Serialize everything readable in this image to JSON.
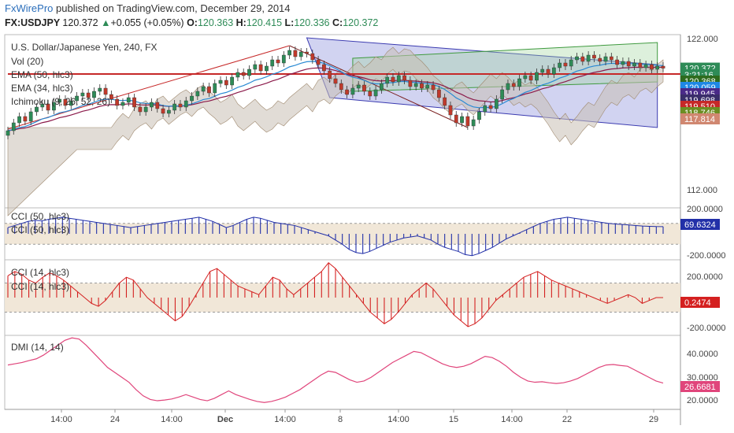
{
  "header": {
    "brand": "FxWirePro",
    "published": " published on TradingView.com, December 29, 2014",
    "symbol": "FX:USDJPY",
    "last": "120.372",
    "change": "+0.055 (+0.05%)",
    "o_label": "O:",
    "o": "120.363",
    "h_label": "H:",
    "h": "120.415",
    "l_label": "L:",
    "l": "120.336",
    "c_label": "C:",
    "c": "120.372"
  },
  "colors": {
    "up": "#2e8b57",
    "down": "#c0392b",
    "cci50": "#2230a8",
    "cci14": "#d42020",
    "dmi": "#e0457b",
    "ema50": "#8b1a4a",
    "ema34": "#2a8ad4",
    "cloud": "#c8bfb4",
    "channel_blue": "#7b80d8",
    "channel_green": "#9fd49a",
    "redline": "#c62828"
  },
  "chart_data": [
    {
      "type": "candlestick",
      "title": "U.S. Dollar/Japanese Yen, 240, FX",
      "indicators": [
        "Vol (20)",
        "EMA (50, hlc3)",
        "EMA (34, hlc3)",
        "Ichimoku (9, 26, 52, 26)"
      ],
      "y_ticks": [
        "122.000",
        "112.000"
      ],
      "ylim": [
        111.5,
        122.5
      ],
      "x_ticks": [
        "14:00",
        "24",
        "14:00",
        "Dec",
        "14:00",
        "8",
        "14:00",
        "15",
        "14:00",
        "22",
        "29"
      ],
      "price_tags": [
        {
          "label": "120.372",
          "value": 120.372,
          "color": "#2e8b57"
        },
        {
          "label": "3:21:16",
          "value": 119.95,
          "color": "#2e8b57"
        },
        {
          "label": "120.368",
          "value": 119.55,
          "color": "#2e6b1e"
        },
        {
          "label": "120.059",
          "value": 119.15,
          "color": "#1e88e5"
        },
        {
          "label": "119.945",
          "value": 118.75,
          "color": "#4a2a88"
        },
        {
          "label": "119.698",
          "value": 118.35,
          "color": "#3a2e6a"
        },
        {
          "label": "119.510",
          "value": 117.95,
          "color": "#c62828"
        },
        {
          "label": "118.746",
          "value": 117.55,
          "color": "#6b8e23"
        },
        {
          "label": "117.814",
          "value": 117.15,
          "color": "#d08770"
        }
      ],
      "horizontal_line": 120.0,
      "closes": [
        116.4,
        116.9,
        117.3,
        117.0,
        117.6,
        117.9,
        118.1,
        117.7,
        118.2,
        118.4,
        118.0,
        118.3,
        118.6,
        118.8,
        118.5,
        118.9,
        119.1,
        118.7,
        118.4,
        118.0,
        118.2,
        118.5,
        117.9,
        117.6,
        117.9,
        118.2,
        117.8,
        117.5,
        117.7,
        118.1,
        117.9,
        118.3,
        118.6,
        118.9,
        119.2,
        118.8,
        119.4,
        119.6,
        119.3,
        119.8,
        120.1,
        119.9,
        120.3,
        120.6,
        120.2,
        120.5,
        120.9,
        120.7,
        121.2,
        121.5,
        121.1,
        121.4,
        121.3,
        120.9,
        120.6,
        120.2,
        119.7,
        119.4,
        119.0,
        118.7,
        119.1,
        119.3,
        118.9,
        118.6,
        119.0,
        119.4,
        119.8,
        119.5,
        119.9,
        119.6,
        119.2,
        119.4,
        119.1,
        119.3,
        119.0,
        118.5,
        118.0,
        117.4,
        116.9,
        117.3,
        116.7,
        117.1,
        117.6,
        118.0,
        117.8,
        118.4,
        119.0,
        119.4,
        119.2,
        119.7,
        119.9,
        119.6,
        120.1,
        120.3,
        120.0,
        120.4,
        120.7,
        120.5,
        120.9,
        121.1,
        120.8,
        121.2,
        121.0,
        120.8,
        121.1,
        120.9,
        120.6,
        120.8,
        120.5,
        120.7,
        120.4,
        120.6,
        120.3,
        120.5,
        120.37
      ]
    },
    {
      "type": "bar",
      "title": "CCI (50, hlc3)",
      "title2": "CCI (50, hlc3)",
      "y_ticks": [
        "200.0000",
        "-200.0000"
      ],
      "ylim": [
        -250,
        250
      ],
      "band": [
        -100,
        100
      ],
      "last_label": "69.6324",
      "values": [
        60,
        80,
        100,
        120,
        130,
        125,
        140,
        150,
        160,
        150,
        140,
        130,
        120,
        110,
        100,
        90,
        80,
        70,
        60,
        70,
        80,
        90,
        100,
        110,
        120,
        130,
        140,
        150,
        160,
        140,
        120,
        90,
        60,
        80,
        110,
        140,
        160,
        150,
        130,
        110,
        100,
        90,
        80,
        60,
        40,
        20,
        0,
        -20,
        -60,
        -100,
        -150,
        -180,
        -190,
        -170,
        -140,
        -110,
        -80,
        -60,
        -40,
        -30,
        -20,
        -40,
        -60,
        -100,
        -130,
        -150,
        -170,
        -200,
        -210,
        -190,
        -160,
        -130,
        -90,
        -50,
        -20,
        10,
        40,
        70,
        100,
        120,
        140,
        150,
        160,
        150,
        140,
        130,
        120,
        110,
        100,
        95,
        90,
        85,
        80,
        75,
        72,
        70,
        69.6
      ]
    },
    {
      "type": "bar",
      "title": "CCI (14, hlc3)",
      "title2": "CCI (14, hlc3)",
      "y_ticks": [
        "200.0000",
        "-200.0000"
      ],
      "ylim": [
        -260,
        260
      ],
      "band": [
        -100,
        100
      ],
      "last_label": "0.2474",
      "values": [
        150,
        180,
        160,
        120,
        100,
        140,
        170,
        150,
        120,
        80,
        40,
        0,
        -40,
        -60,
        -20,
        40,
        100,
        140,
        120,
        60,
        0,
        -40,
        -80,
        -120,
        -160,
        -130,
        -60,
        20,
        100,
        180,
        200,
        160,
        120,
        80,
        60,
        40,
        20,
        80,
        140,
        120,
        60,
        20,
        60,
        100,
        140,
        180,
        240,
        200,
        140,
        80,
        20,
        -40,
        -100,
        -140,
        -180,
        -150,
        -100,
        -40,
        20,
        60,
        100,
        60,
        0,
        -60,
        -120,
        -160,
        -200,
        -180,
        -140,
        -80,
        -20,
        20,
        60,
        100,
        140,
        160,
        180,
        150,
        120,
        100,
        80,
        60,
        40,
        20,
        0,
        -20,
        -40,
        -20,
        0,
        20,
        0,
        -40,
        -20,
        0,
        0.25
      ]
    },
    {
      "type": "line",
      "title": "DMI (14, 14)",
      "y_ticks": [
        "40.0000",
        "30.0000",
        "20.0000"
      ],
      "ylim": [
        16,
        46
      ],
      "last_label": "26.6681",
      "values": [
        34,
        34.5,
        35,
        35.8,
        36.5,
        38,
        40,
        42,
        44,
        45,
        44.5,
        42,
        39,
        36,
        33,
        31,
        29,
        27,
        24,
        21.5,
        20,
        19.5,
        19.8,
        20.2,
        21,
        22,
        21,
        20,
        19.5,
        20.5,
        22,
        23.5,
        22,
        21,
        20,
        19.2,
        18.8,
        19.2,
        20,
        21,
        22.5,
        24,
        26,
        28,
        30,
        31.5,
        31,
        29.5,
        28,
        27,
        27.5,
        29,
        31,
        33,
        35,
        36.5,
        38,
        39.5,
        39,
        37.5,
        36,
        34.5,
        33.5,
        33,
        33.5,
        34.5,
        36,
        37.5,
        37,
        35.5,
        33.5,
        31,
        29,
        27.5,
        27,
        27.2,
        26.8,
        26.5,
        26.8,
        27.5,
        28.5,
        30,
        31.5,
        33,
        34,
        34.2,
        33.8,
        33.5,
        32,
        30.5,
        29,
        27.5,
        26.67
      ]
    }
  ]
}
